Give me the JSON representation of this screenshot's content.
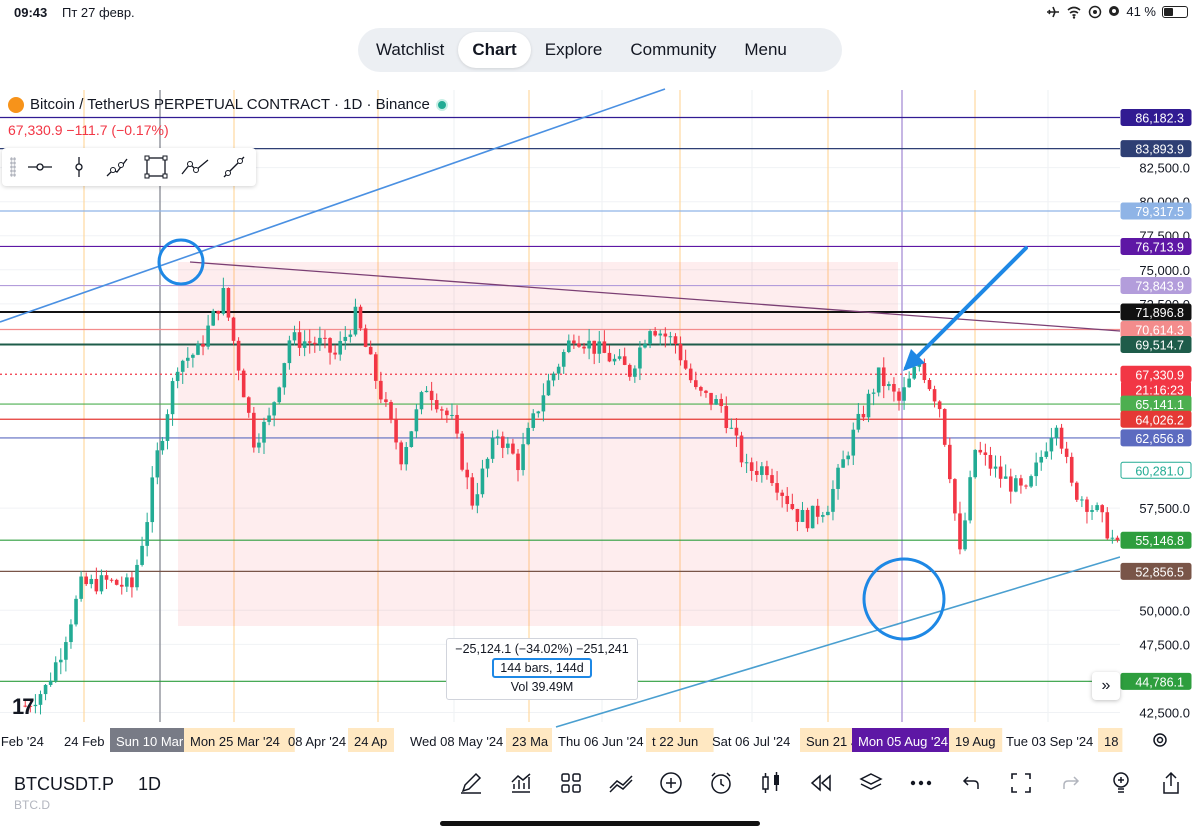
{
  "status_bar": {
    "time": "09:43",
    "date": "Пт 27 февр.",
    "battery": "41 %"
  },
  "nav": {
    "tabs": [
      "Watchlist",
      "Chart",
      "Explore",
      "Community",
      "Menu"
    ],
    "active": 1
  },
  "header": {
    "symbol_title": "Bitcoin / TetherUS PERPETUAL CONTRACT · 1D · Binance",
    "last_price": "67,330.9",
    "change": "−111.7 (−0.17%)"
  },
  "measure": {
    "line1": "−25,124.1 (−34.02%) −251,241",
    "line2": "144 bars, 144d",
    "line3": "Vol 39.49M"
  },
  "bottom": {
    "symbol": "BTCUSDT.P",
    "secondary_symbol": "BTC.D",
    "interval": "1D"
  },
  "icons": [
    "draw-line-icon",
    "trend-line-icon",
    "rectangle-icon",
    "path-icon",
    "ray-icon",
    "pencil-icon",
    "indicators-icon",
    "templates-icon",
    "compare-icon",
    "add-icon",
    "alert-icon",
    "candles-icon",
    "replay-icon",
    "layers-icon",
    "more-icon",
    "undo-icon",
    "fullscreen-icon",
    "redo-icon",
    "idea-icon",
    "share-icon",
    "settings-icon",
    "scroll-right-icon"
  ],
  "colors": {
    "up": "#22ab94",
    "down": "#f23645",
    "accent": "#2962ff"
  },
  "chart_data": {
    "type": "candlestick",
    "title": "Bitcoin / TetherUS PERPETUAL CONTRACT · 1D · Binance",
    "ylim": [
      41800,
      88200
    ],
    "y_ticks": [
      "82,500.0",
      "80,000.0",
      "77,500.0",
      "75,000.0",
      "72,500.0",
      "57,500.0",
      "50,000.0",
      "47,500.0",
      "42,500.0"
    ],
    "x_ticks": [
      "0 Feb '24",
      "24 Feb",
      "Sun 10 Mar",
      "Mon 25 Mar '24",
      "08 Apr '24",
      "24 Ap",
      "Wed 08 May '24",
      "23 Ma",
      "Thu 06 Jun '24",
      "t 22 Jun",
      "Sat 06 Jul '24",
      "Sun 21 Jul",
      "Mon 05 Aug '24",
      "19 Aug",
      "Tue 03 Sep '24",
      "18"
    ],
    "highlighted_x_labels": [
      "Sun 10 Mar",
      "Mon 05 Aug '24"
    ],
    "close_path": [
      {
        "date": "2024-02-03",
        "close": 43000
      },
      {
        "date": "2024-02-07",
        "close": 44300
      },
      {
        "date": "2024-02-10",
        "close": 47000
      },
      {
        "date": "2024-02-14",
        "close": 51800
      },
      {
        "date": "2024-02-19",
        "close": 52100
      },
      {
        "date": "2024-02-24",
        "close": 51700
      },
      {
        "date": "2024-02-27",
        "close": 56800
      },
      {
        "date": "2024-02-29",
        "close": 61400
      },
      {
        "date": "2024-03-04",
        "close": 68200
      },
      {
        "date": "2024-03-08",
        "close": 69000
      },
      {
        "date": "2024-03-13",
        "close": 73200
      },
      {
        "date": "2024-03-15",
        "close": 69800
      },
      {
        "date": "2024-03-19",
        "close": 62500
      },
      {
        "date": "2024-03-22",
        "close": 64000
      },
      {
        "date": "2024-03-26",
        "close": 69900
      },
      {
        "date": "2024-04-01",
        "close": 69600
      },
      {
        "date": "2024-04-04",
        "close": 68700
      },
      {
        "date": "2024-04-08",
        "close": 71600
      },
      {
        "date": "2024-04-12",
        "close": 67000
      },
      {
        "date": "2024-04-17",
        "close": 61300
      },
      {
        "date": "2024-04-22",
        "close": 66500
      },
      {
        "date": "2024-04-27",
        "close": 63800
      },
      {
        "date": "2024-05-01",
        "close": 58000
      },
      {
        "date": "2024-05-06",
        "close": 63000
      },
      {
        "date": "2024-05-10",
        "close": 60800
      },
      {
        "date": "2024-05-15",
        "close": 66000
      },
      {
        "date": "2024-05-21",
        "close": 70300
      },
      {
        "date": "2024-05-27",
        "close": 68800
      },
      {
        "date": "2024-06-01",
        "close": 67500
      },
      {
        "date": "2024-06-05",
        "close": 71000
      },
      {
        "date": "2024-06-10",
        "close": 69600
      },
      {
        "date": "2024-06-14",
        "close": 66000
      },
      {
        "date": "2024-06-19",
        "close": 65000
      },
      {
        "date": "2024-06-24",
        "close": 60300
      },
      {
        "date": "2024-06-28",
        "close": 60500
      },
      {
        "date": "2024-07-04",
        "close": 57000
      },
      {
        "date": "2024-07-06",
        "close": 56700
      },
      {
        "date": "2024-07-10",
        "close": 57800
      },
      {
        "date": "2024-07-15",
        "close": 62900
      },
      {
        "date": "2024-07-20",
        "close": 67200
      },
      {
        "date": "2024-07-24",
        "close": 65300
      },
      {
        "date": "2024-07-28",
        "close": 68200
      },
      {
        "date": "2024-08-01",
        "close": 65000
      },
      {
        "date": "2024-08-03",
        "close": 60200
      },
      {
        "date": "2024-08-05",
        "close": 54000
      },
      {
        "date": "2024-08-08",
        "close": 61800
      },
      {
        "date": "2024-08-13",
        "close": 59800
      },
      {
        "date": "2024-08-18",
        "close": 58500
      },
      {
        "date": "2024-08-24",
        "close": 64100
      },
      {
        "date": "2024-08-27",
        "close": 59000
      },
      {
        "date": "2024-09-01",
        "close": 57200
      },
      {
        "date": "2024-09-06",
        "close": 53900
      },
      {
        "date": "2024-09-10",
        "close": 57600
      },
      {
        "date": "2024-09-14",
        "close": 60000
      },
      {
        "date": "2024-09-16",
        "close": 58200
      },
      {
        "date": "2024-09-18",
        "close": 61500
      }
    ],
    "price_labels": [
      {
        "value": 86182.3,
        "text": "86,182.3",
        "color": "#311b92"
      },
      {
        "value": 83893.9,
        "text": "83,893.9",
        "color": "#2e3f74"
      },
      {
        "value": 79317.5,
        "text": "79,317.5",
        "color": "#8fb4e6"
      },
      {
        "value": 76713.9,
        "text": "76,713.9",
        "color": "#5e17a5"
      },
      {
        "value": 73843.9,
        "text": "73,843.9",
        "color": "#b39ddb"
      },
      {
        "value": 71896.8,
        "text": "71,896.8",
        "color": "#111111"
      },
      {
        "value": 70614.3,
        "text": "70,614.3",
        "color": "#f38c8c"
      },
      {
        "value": 69514.7,
        "text": "69,514.7",
        "color": "#1e5c4a"
      },
      {
        "value": 67330.9,
        "text": "67,330.9",
        "color": "#f23645"
      },
      {
        "value": 65141.1,
        "text": "65,141.1",
        "color": "#4caf50"
      },
      {
        "value": 64026.2,
        "text": "64,026.2",
        "color": "#e53935"
      },
      {
        "value": 62656.8,
        "text": "62,656.8",
        "color": "#5c6bc0"
      },
      {
        "value": 60281.0,
        "text": "60,281.0",
        "color": "#22ab94"
      },
      {
        "value": 55146.8,
        "text": "55,146.8",
        "color": "#2e9e3e"
      },
      {
        "value": 52856.5,
        "text": "52,856.5",
        "color": "#795548"
      },
      {
        "value": 44786.1,
        "text": "44,786.1",
        "color": "#2e9e3e"
      }
    ],
    "countdown": "21:16:23",
    "grid": true
  }
}
